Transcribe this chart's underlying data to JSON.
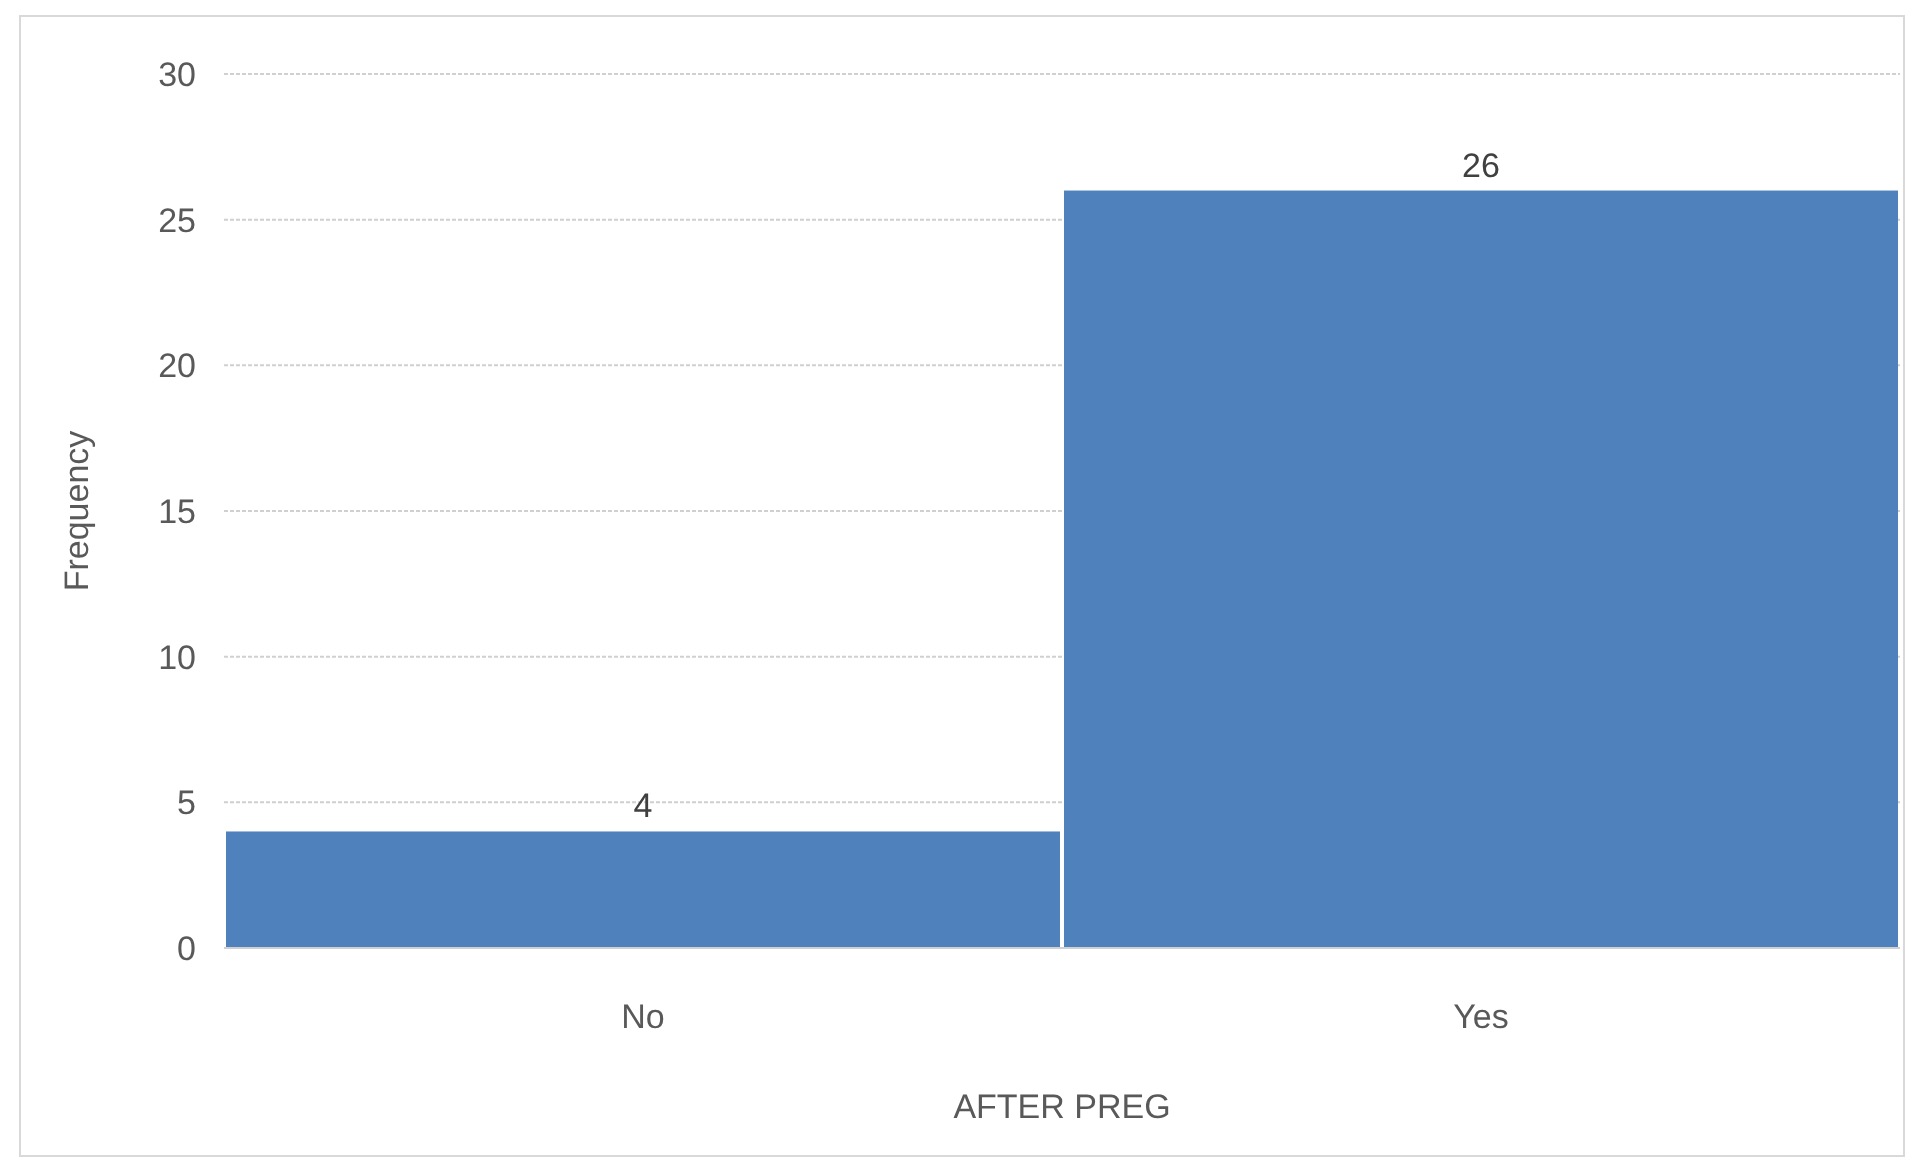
{
  "chart_data": {
    "type": "bar",
    "xlabel": "AFTER PREG",
    "ylabel": "Frequency",
    "categories": [
      "No",
      "Yes"
    ],
    "values": [
      4,
      26
    ],
    "color": "#4f81bd",
    "ylim": [
      0,
      30
    ],
    "yticks": [
      0,
      5,
      10,
      15,
      20,
      25,
      30
    ],
    "grid": "y",
    "data_labels": true
  }
}
